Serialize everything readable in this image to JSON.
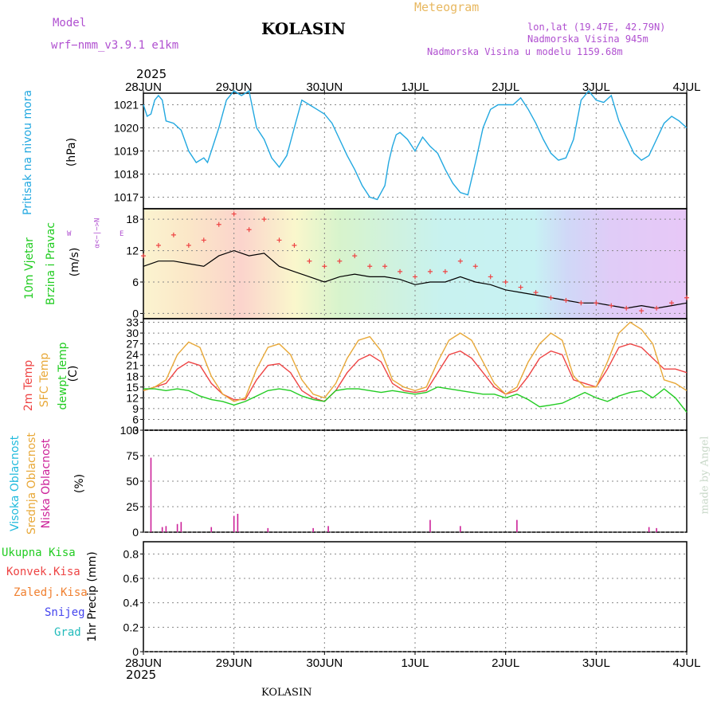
{
  "header": {
    "model_label": "Model",
    "model_name": "wrf−nmm_v3.9.1  e1km",
    "station": "KOLASIN",
    "meteogram": "Meteogram",
    "lonlat": "lon,lat (19.47E, 42.79N)",
    "elevation": "Nadmorska Visina 945m",
    "model_elevation": "Nadmorska Visina u modelu 1159.68m",
    "year_top": "2025",
    "year_bottom": "2025",
    "footer_station": "KOLASIN",
    "credit": "made by Angel"
  },
  "colors": {
    "pressure": "#22a8e0",
    "temp2m": "#ee4444",
    "sfc_temp": "#e8a838",
    "dewpt": "#22cc22",
    "cloud_high": "#22bbdd",
    "cloud_mid": "#e8a838",
    "cloud_low": "#cc2299",
    "purple": "#b050d0",
    "wind_black": "#000000",
    "gust": "#ee4444"
  },
  "panel_labels": {
    "pressure": {
      "main": "Pritisak na nivou mora",
      "unit": "(hPa)"
    },
    "wind": {
      "line1": "10m Vjetar",
      "line2": "Brzina i Pravac",
      "unit": "(m/s)",
      "compass_ns": "α<−|−>N",
      "compass_w": "W",
      "compass_e": "E"
    },
    "temp": {
      "t2m": "2m Temp",
      "sfc": "SFC Temp",
      "dew": "dewpt Temp",
      "unit": "(C)"
    },
    "cloud": {
      "high": "Visoka Oblacnost",
      "mid": "Srednja Oblacnost",
      "low": "Niska Oblacnost",
      "unit": "(%)"
    },
    "precip": {
      "total": "Ukupna Kisa",
      "conv": "Konvek.Kisa",
      "frozen": "Zaledj.Kisa",
      "snow": "Snijeg",
      "hail": "Grad",
      "unit": "1hr Precip (mm)"
    }
  },
  "chart_data": [
    {
      "type": "line",
      "panel": "pressure",
      "x_unit": "hours from 28JUN 00Z",
      "xlim": [
        0,
        144
      ],
      "x_ticks": [
        "28JUN",
        "29JUN",
        "30JUN",
        "1JUL",
        "2JUL",
        "3JUL",
        "4JUL"
      ],
      "ylim": [
        1016.5,
        1021.5
      ],
      "y_ticks": [
        1017,
        1018,
        1019,
        1020,
        1021
      ],
      "series": [
        {
          "name": "Pritisak na nivou mora",
          "x": [
            0,
            1,
            2,
            3,
            4,
            5,
            6,
            8,
            10,
            12,
            14,
            16,
            17,
            18,
            20,
            22,
            24,
            26,
            28,
            30,
            32,
            34,
            36,
            38,
            40,
            42,
            44,
            46,
            48,
            50,
            52,
            54,
            56,
            58,
            60,
            62,
            64,
            65,
            66,
            67,
            68,
            70,
            72,
            74,
            76,
            78,
            80,
            82,
            84,
            86,
            88,
            90,
            92,
            94,
            96,
            98,
            100,
            102,
            104,
            106,
            108,
            110,
            112,
            114,
            116,
            118,
            120,
            122,
            124,
            126,
            128,
            130,
            132,
            134,
            136,
            138,
            140,
            142,
            144
          ],
          "values": [
            1021.0,
            1020.5,
            1020.6,
            1021.2,
            1021.4,
            1021.2,
            1020.3,
            1020.2,
            1019.9,
            1019.0,
            1018.5,
            1018.7,
            1018.5,
            1019.0,
            1020.0,
            1021.2,
            1021.6,
            1021.4,
            1021.6,
            1020.0,
            1019.5,
            1018.7,
            1018.3,
            1018.8,
            1020.0,
            1021.2,
            1021.0,
            1020.8,
            1020.6,
            1020.2,
            1019.5,
            1018.8,
            1018.2,
            1017.5,
            1017.0,
            1016.9,
            1017.5,
            1018.5,
            1019.2,
            1019.7,
            1019.8,
            1019.5,
            1019.0,
            1019.6,
            1019.2,
            1018.9,
            1018.2,
            1017.6,
            1017.2,
            1017.1,
            1018.5,
            1020.0,
            1020.8,
            1021.0,
            1021.0,
            1021.0,
            1021.3,
            1020.8,
            1020.2,
            1019.5,
            1018.9,
            1018.6,
            1018.7,
            1019.5,
            1021.2,
            1021.6,
            1021.2,
            1021.1,
            1021.4,
            1020.3,
            1019.6,
            1018.9,
            1018.6,
            1018.8,
            1019.5,
            1020.2,
            1020.5,
            1020.3,
            1020.0
          ]
        }
      ]
    },
    {
      "type": "line",
      "panel": "wind",
      "xlim": [
        0,
        144
      ],
      "ylim": [
        -1,
        20
      ],
      "y_ticks": [
        0,
        6,
        12,
        18
      ],
      "series": [
        {
          "name": "10m Vjetar",
          "x": [
            0,
            4,
            8,
            12,
            16,
            20,
            24,
            28,
            32,
            36,
            40,
            44,
            48,
            52,
            56,
            60,
            64,
            68,
            72,
            76,
            80,
            84,
            88,
            92,
            96,
            100,
            104,
            108,
            112,
            116,
            120,
            124,
            128,
            132,
            136,
            140,
            144
          ],
          "values": [
            9,
            10,
            10,
            9.5,
            9,
            11,
            12,
            11,
            11.5,
            9,
            8,
            7,
            6,
            7,
            7.5,
            7,
            7,
            6.5,
            5.5,
            6,
            6,
            7,
            6,
            5.5,
            4.5,
            4,
            3.5,
            3,
            2.5,
            2,
            2,
            1.5,
            1,
            1.5,
            1,
            1.5,
            2
          ]
        },
        {
          "name": "gust",
          "x": [
            0,
            4,
            8,
            12,
            16,
            20,
            24,
            28,
            32,
            36,
            40,
            44,
            48,
            52,
            56,
            60,
            64,
            68,
            72,
            76,
            80,
            84,
            88,
            92,
            96,
            100,
            104,
            108,
            112,
            116,
            120,
            124,
            128,
            132,
            136,
            140,
            144
          ],
          "values": [
            11,
            13,
            15,
            13,
            14,
            17,
            19,
            16,
            18,
            14,
            13,
            10,
            9,
            10,
            11,
            9,
            9,
            8,
            7,
            8,
            8,
            10,
            9,
            7,
            6,
            5,
            4,
            3,
            2.5,
            2,
            2,
            1.5,
            1,
            0.5,
            1,
            2,
            3
          ]
        }
      ]
    },
    {
      "type": "line",
      "panel": "temperature",
      "xlim": [
        0,
        144
      ],
      "ylim": [
        3,
        34
      ],
      "y_ticks": [
        3,
        6,
        9,
        12,
        15,
        18,
        21,
        24,
        27,
        30,
        33
      ],
      "x": [
        0,
        3,
        6,
        9,
        12,
        15,
        18,
        21,
        24,
        27,
        30,
        33,
        36,
        39,
        42,
        45,
        48,
        51,
        54,
        57,
        60,
        63,
        66,
        69,
        72,
        75,
        78,
        81,
        84,
        87,
        90,
        93,
        96,
        99,
        102,
        105,
        108,
        111,
        114,
        117,
        120,
        123,
        126,
        129,
        132,
        135,
        138,
        141,
        144
      ],
      "series": [
        {
          "name": "2m Temp",
          "values": [
            14,
            15,
            16,
            20,
            22,
            21,
            16,
            13,
            11.5,
            11.5,
            17,
            21,
            21.5,
            19,
            14,
            12,
            11,
            14,
            19,
            22.5,
            24,
            22,
            16,
            14,
            13.5,
            14,
            19,
            24,
            25,
            23,
            19,
            15,
            13,
            14,
            18,
            23,
            25,
            24,
            17,
            16,
            15,
            20,
            26,
            27,
            26,
            23,
            20,
            20,
            19
          ]
        },
        {
          "name": "SFC Temp",
          "values": [
            14,
            15,
            17,
            24,
            27.5,
            26,
            18,
            13,
            11,
            12,
            20,
            26,
            27,
            24,
            17,
            13,
            12,
            16,
            23,
            28,
            29,
            25,
            17,
            15,
            14,
            15,
            22,
            28,
            30,
            28,
            22,
            16,
            13,
            15,
            22,
            27,
            30,
            28,
            18,
            15,
            15,
            22,
            30,
            33,
            31,
            27,
            17,
            16,
            14
          ]
        },
        {
          "name": "dewpt Temp",
          "values": [
            14.5,
            14.5,
            14,
            14.5,
            14,
            12.5,
            11.5,
            11,
            10,
            11,
            12.5,
            14,
            14.5,
            14,
            12.5,
            11.5,
            11,
            14,
            14.5,
            14.5,
            14,
            13.5,
            14,
            13.5,
            13,
            13.5,
            15,
            14.5,
            14,
            13.5,
            13,
            13,
            12,
            13,
            11.5,
            9.5,
            10,
            10.5,
            12,
            13.5,
            12,
            11,
            12.5,
            13.5,
            14,
            12,
            14.5,
            12,
            8
          ]
        }
      ]
    },
    {
      "type": "bar",
      "panel": "cloud",
      "xlim": [
        0,
        144
      ],
      "ylim": [
        0,
        100
      ],
      "y_ticks": [
        0,
        25,
        50,
        75,
        100
      ],
      "series": [
        {
          "name": "Niska Oblacnost",
          "x": [
            2,
            5,
            6,
            9,
            10,
            18,
            24,
            25,
            33,
            45,
            49,
            76,
            84,
            99,
            134,
            136
          ],
          "values": [
            73,
            5,
            6,
            8,
            10,
            5,
            16,
            18,
            4,
            4,
            6,
            12,
            6,
            12,
            5,
            4
          ]
        }
      ]
    },
    {
      "type": "bar",
      "panel": "precip",
      "xlim": [
        0,
        144
      ],
      "ylim": [
        0,
        0.9
      ],
      "y_ticks": [
        0,
        0.2,
        0.4,
        0.6,
        0.8
      ],
      "series": [
        {
          "name": "Ukupna Kisa",
          "x": [],
          "values": []
        }
      ]
    }
  ]
}
